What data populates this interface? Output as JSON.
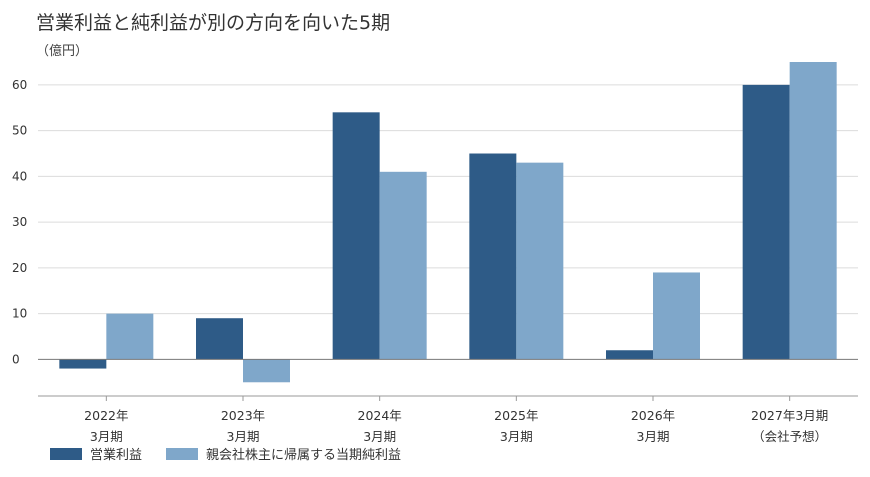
{
  "colors": {
    "operating": "#2e5b87",
    "net": "#7fa7ca",
    "grid": "#dcdcdc",
    "axis": "#999999",
    "text": "#333333"
  },
  "chart_data": {
    "type": "bar",
    "title": "営業利益と純利益が別の方向を向いた5期",
    "unit": "（億円）",
    "categories": [
      [
        "2022年",
        "3月期"
      ],
      [
        "2023年",
        "3月期"
      ],
      [
        "2024年",
        "3月期"
      ],
      [
        "2025年",
        "3月期"
      ],
      [
        "2026年",
        "3月期"
      ],
      [
        "2027年3月期",
        "（会社予想）"
      ]
    ],
    "series": [
      {
        "name": "営業利益",
        "values": [
          -2,
          9,
          54,
          45,
          2,
          60
        ]
      },
      {
        "name": "親会社株主に帰属する当期純利益",
        "values": [
          10,
          -5,
          41,
          43,
          19,
          65
        ]
      }
    ],
    "ylim": [
      -8,
      65
    ],
    "yticks": [
      0,
      10,
      20,
      30,
      40,
      50,
      60
    ],
    "grid": true,
    "legend": "bottom-left"
  }
}
